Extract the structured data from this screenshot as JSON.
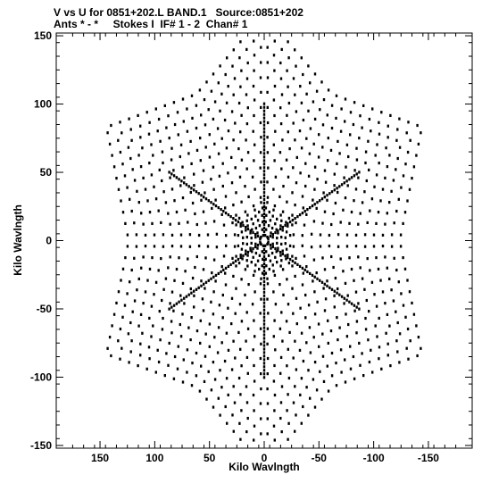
{
  "header": {
    "line1": "V vs U for 0851+202.L BAND.1   Source:0851+202",
    "line2": "Ants * - *     Stokes I  IF# 1 - 2  Chan# 1"
  },
  "chart_data": {
    "type": "scatter",
    "title": "V vs U for 0851+202.L BAND.1   Source:0851+202",
    "subtitle": "Ants * - *     Stokes I  IF# 1 - 2  Chan# 1",
    "xlabel": "Kilo Wavlngth",
    "ylabel": "Kilo Wavlngth",
    "xlim": [
      190,
      -190
    ],
    "ylim": [
      -152,
      152
    ],
    "x_inverted": true,
    "xticks": [
      150,
      100,
      50,
      0,
      -50,
      -100,
      -150
    ],
    "yticks": [
      150,
      100,
      50,
      0,
      -50,
      -100,
      -150
    ],
    "grid": false,
    "pattern": "six-armed star (snowflake) uv-coverage with radial arms at 30, 90, 150, 210, 270 and 330 degrees; arm tips reach about 165 kilo-wavelengths and dotted chevron tracks between arms",
    "arm_angles_deg": [
      30,
      90,
      150,
      210,
      270,
      330
    ],
    "arm_length": 165,
    "track_spacing": 9.5,
    "inner_track_spacing": 4.5
  }
}
